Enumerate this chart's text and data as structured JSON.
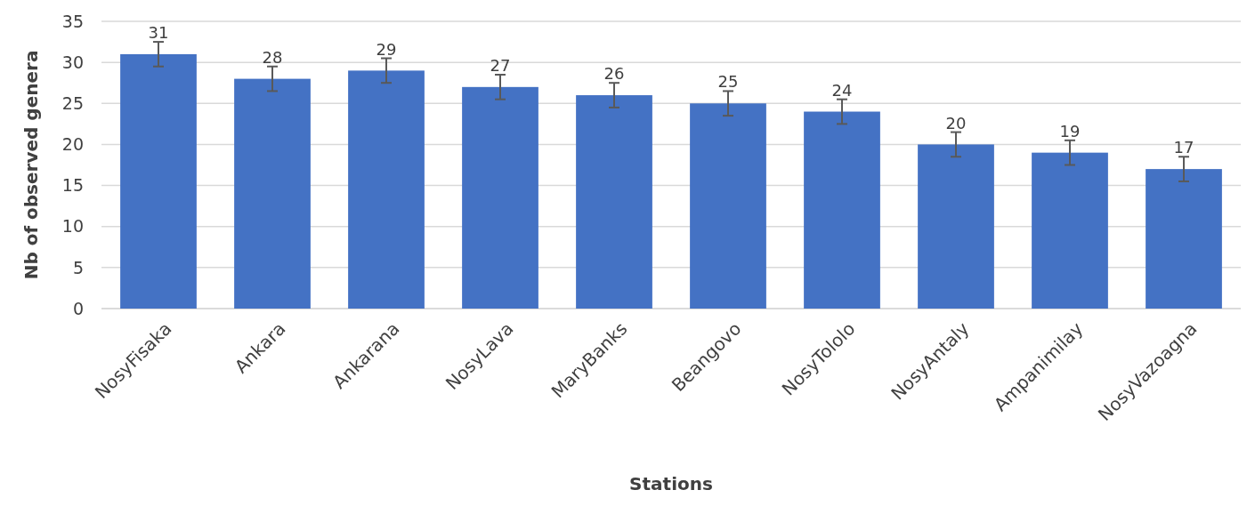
{
  "chart_data": {
    "type": "bar",
    "xlabel": "Stations",
    "ylabel": "Nb of observed genera",
    "categories": [
      "NosyFisaka",
      "Ankara",
      "Ankarana",
      "NosyLava",
      "MaryBanks",
      "Beangovo",
      "NosyTololo",
      "NosyAntaly",
      "Ampanimilay",
      "NosyVazoagna"
    ],
    "values": [
      31,
      28,
      29,
      27,
      26,
      25,
      24,
      20,
      19,
      17
    ],
    "errors": [
      1.5,
      1.5,
      1.5,
      1.5,
      1.5,
      1.5,
      1.5,
      1.5,
      1.5,
      1.5
    ],
    "color": "#4472c4",
    "ylim": [
      0,
      35
    ],
    "yticks": [
      0,
      5,
      10,
      15,
      20,
      25,
      30,
      35
    ],
    "grid": "y",
    "data_labels": true
  }
}
